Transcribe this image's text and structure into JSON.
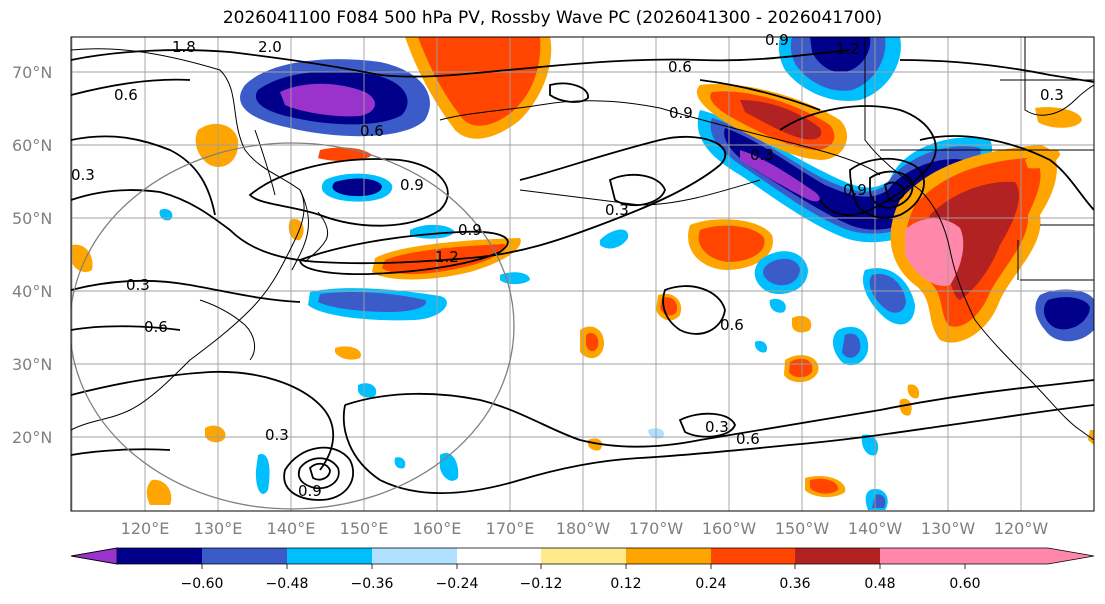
{
  "title": "2026041100 F084 500 hPa PV, Rossby Wave PC (2026041300 - 2026041700)",
  "lat_labels": [
    "70°N",
    "60°N",
    "50°N",
    "40°N",
    "30°N",
    "20°N"
  ],
  "lon_labels": [
    "120°E",
    "130°E",
    "140°E",
    "150°E",
    "160°E",
    "170°E",
    "180°W",
    "170°W",
    "160°W",
    "150°W",
    "140°W",
    "130°W",
    "120°W"
  ],
  "contour_labels": [
    "1.8",
    "2.0",
    "0.6",
    "0.6",
    "0.6",
    "1.2",
    "0.9",
    "0.9",
    "0.9",
    "1.2",
    "0.3",
    "0.3",
    "0.6",
    "0.3",
    "0.3",
    "0.6",
    "0.9",
    "0.6",
    "0.9",
    "0.3",
    "0.3",
    "0.3",
    "0.9"
  ],
  "colorbar": {
    "ticks": [
      "−0.60",
      "−0.48",
      "−0.36",
      "−0.24",
      "−0.12",
      "0.12",
      "0.24",
      "0.36",
      "0.48",
      "0.60"
    ],
    "colors": [
      "#9933cc",
      "#00008b",
      "#3b5bc9",
      "#00bfff",
      "#b0e0ff",
      "#ffffff",
      "#ffeb8a",
      "#ffa500",
      "#ff4500",
      "#b22222",
      "#ff88aa"
    ]
  }
}
